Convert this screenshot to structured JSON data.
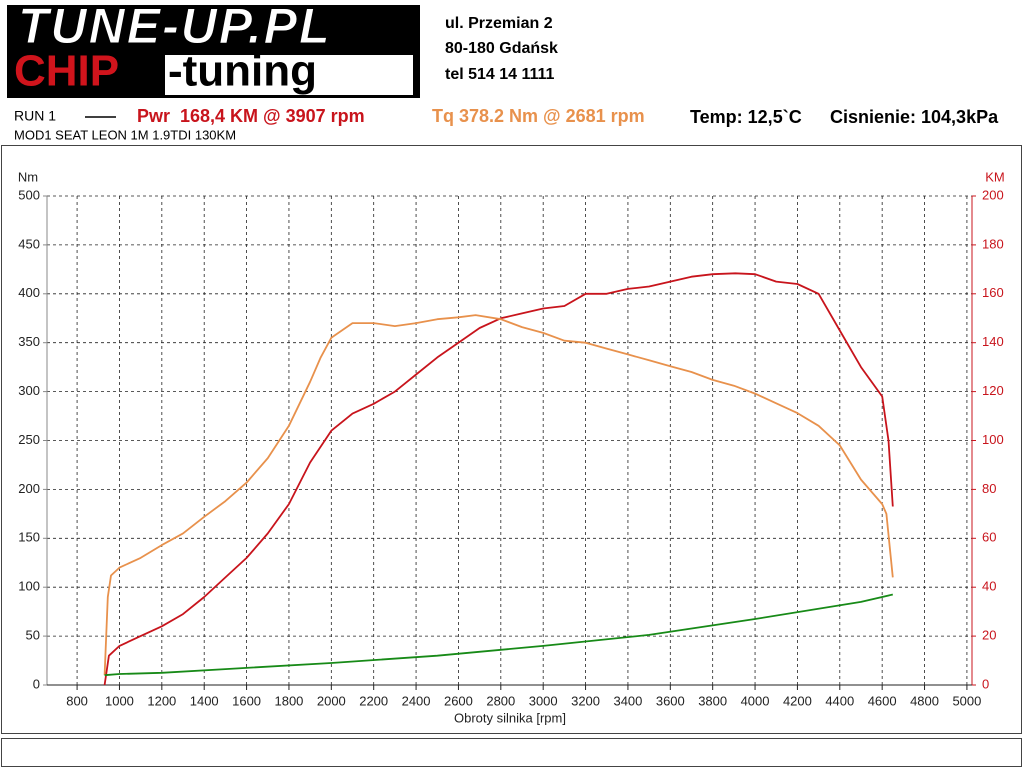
{
  "header": {
    "logo_top": "TUNE-UP.PL",
    "logo_chip": "CHIP",
    "logo_tuning": "-tuning",
    "address": [
      "ul. Przemian 2",
      "80-180 Gdańsk",
      "tel 514 14 1111"
    ],
    "run": "RUN 1",
    "vehicle": "MOD1 SEAT LEON 1M 1.9TDI 130KM",
    "temp": "Temp: 12,5`C",
    "pressure": "Cisnienie: 104,3kPa"
  },
  "chart_data": {
    "type": "line",
    "xlabel": "Obroty silnika [rpm]",
    "ylabel": "Nm",
    "y2label": "KM",
    "xlim": [
      658,
      5024
    ],
    "ylim": [
      0,
      500
    ],
    "y2lim": [
      0,
      200
    ],
    "xticks": [
      800,
      1000,
      1200,
      1400,
      1600,
      1800,
      2000,
      2200,
      2400,
      2600,
      2800,
      3000,
      3200,
      3400,
      3600,
      3800,
      4000,
      4200,
      4400,
      4600,
      4800,
      5000
    ],
    "yticks": [
      0,
      50,
      100,
      150,
      200,
      250,
      300,
      350,
      400,
      450,
      500
    ],
    "y2ticks": [
      0,
      20,
      40,
      60,
      80,
      100,
      120,
      140,
      160,
      180,
      200
    ],
    "grid": true,
    "series": [
      {
        "name": "Pwr  168,4 KM @ 3907 rpm",
        "color": "#c8141c",
        "axis": "y2",
        "x": [
          930,
          950,
          1000,
          1100,
          1200,
          1300,
          1400,
          1500,
          1600,
          1700,
          1800,
          1900,
          2000,
          2100,
          2200,
          2300,
          2400,
          2500,
          2600,
          2700,
          2800,
          2900,
          3000,
          3100,
          3200,
          3300,
          3400,
          3500,
          3600,
          3700,
          3800,
          3907,
          4000,
          4100,
          4200,
          4300,
          4400,
          4500,
          4600,
          4630,
          4650
        ],
        "values": [
          0,
          12,
          16,
          20,
          24,
          29,
          36,
          44,
          52,
          62,
          74,
          91,
          104,
          111,
          115,
          120,
          127,
          134,
          140,
          146,
          150,
          152,
          154,
          155,
          160,
          160,
          162,
          163,
          165,
          167,
          168,
          168.4,
          168,
          165,
          164,
          160,
          145,
          130,
          118,
          100,
          73
        ]
      },
      {
        "name": "Tq 378.2 Nm @ 2681 rpm",
        "color": "#e8914c",
        "axis": "y",
        "x": [
          930,
          945,
          960,
          1000,
          1100,
          1200,
          1300,
          1400,
          1500,
          1600,
          1700,
          1800,
          1900,
          1950,
          2000,
          2100,
          2200,
          2300,
          2400,
          2500,
          2600,
          2681,
          2800,
          2900,
          3000,
          3100,
          3200,
          3300,
          3400,
          3500,
          3600,
          3700,
          3800,
          3900,
          4000,
          4100,
          4200,
          4300,
          4400,
          4500,
          4600,
          4620,
          4650
        ],
        "values": [
          10,
          90,
          112,
          120,
          130,
          143,
          155,
          172,
          188,
          207,
          232,
          265,
          310,
          335,
          355,
          370,
          370,
          367,
          370,
          374,
          376,
          378.2,
          374,
          366,
          360,
          352,
          350,
          344,
          338,
          332,
          326,
          320,
          312,
          306,
          298,
          288,
          278,
          265,
          245,
          210,
          185,
          175,
          110
        ]
      },
      {
        "color": "#178a17",
        "axis": "y2",
        "x": [
          930,
          1000,
          1200,
          1500,
          2000,
          2500,
          3000,
          3500,
          4000,
          4500,
          4650
        ],
        "values": [
          4,
          4.5,
          5,
          6.5,
          9,
          12,
          16,
          20.5,
          27,
          34,
          37
        ]
      }
    ]
  }
}
